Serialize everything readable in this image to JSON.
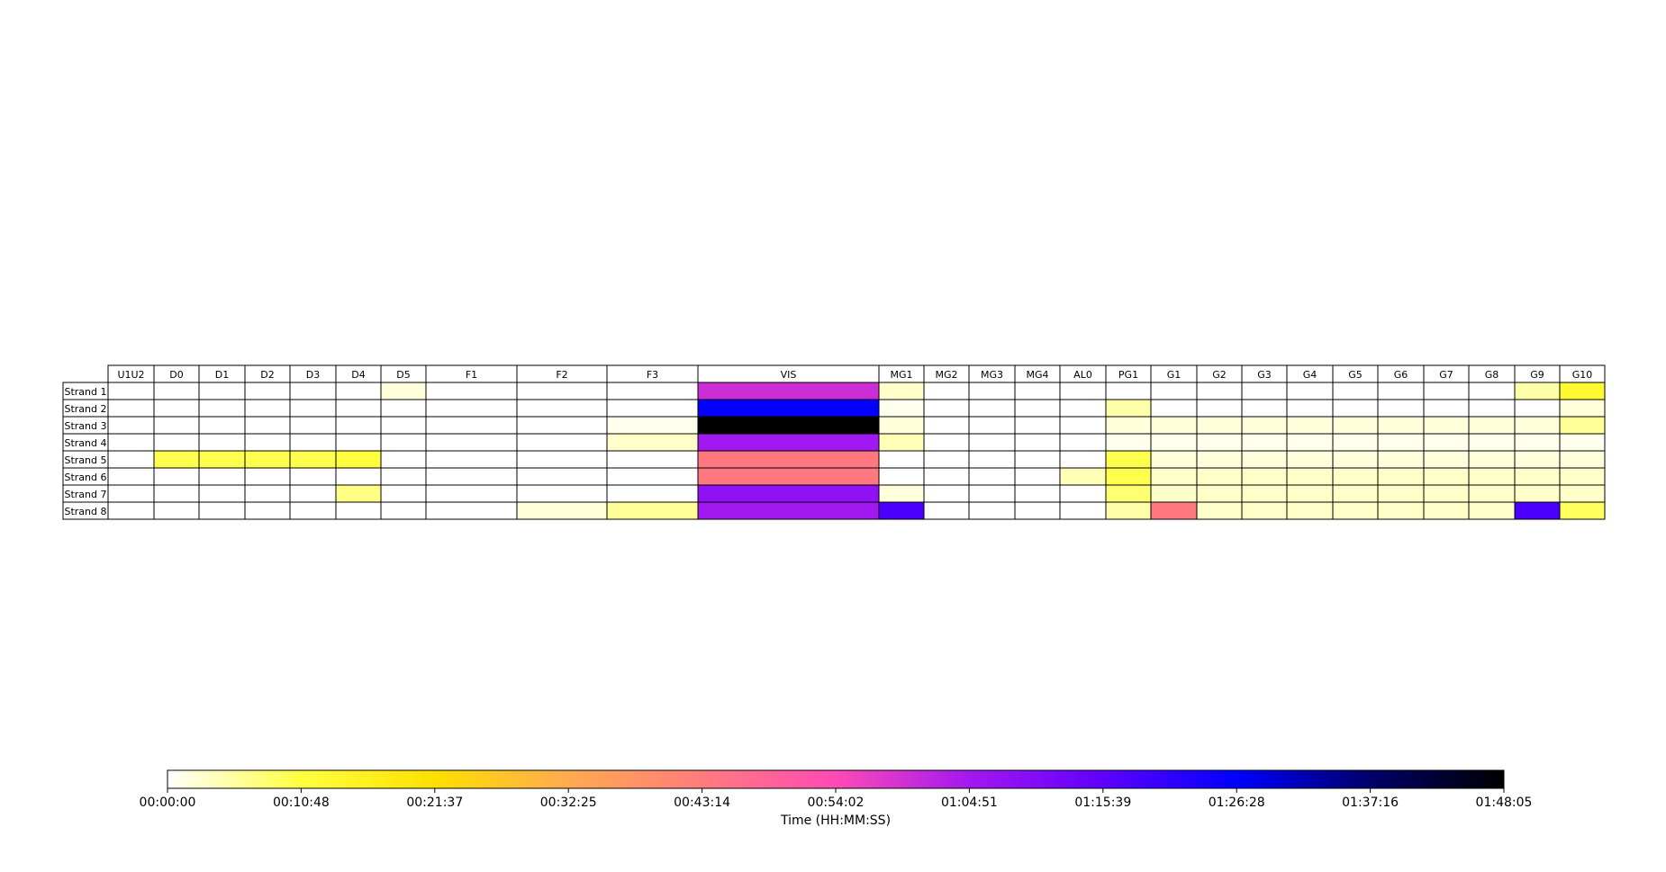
{
  "chart_data": {
    "type": "heatmap",
    "title": "",
    "columns": [
      "U1U2",
      "D0",
      "D1",
      "D2",
      "D3",
      "D4",
      "D5",
      "F1",
      "F2",
      "F3",
      "VIS",
      "MG1",
      "MG2",
      "MG3",
      "MG4",
      "AL0",
      "PG1",
      "G1",
      "G2",
      "G3",
      "G4",
      "G5",
      "G6",
      "G7",
      "G8",
      "G9",
      "G10"
    ],
    "rows": [
      "Strand 1",
      "Strand 2",
      "Strand 3",
      "Strand 4",
      "Strand 5",
      "Strand 6",
      "Strand 7",
      "Strand 8"
    ],
    "values": [
      [
        0,
        0,
        0,
        0,
        0,
        0,
        2,
        0,
        0,
        0,
        60,
        3,
        0,
        0,
        0,
        0,
        0,
        0,
        0,
        0,
        0,
        0,
        0,
        0,
        0,
        5,
        13
      ],
      [
        0,
        0,
        0,
        0,
        0,
        0,
        0,
        0,
        0,
        0,
        86,
        1,
        0,
        0,
        0,
        0,
        5,
        0,
        0,
        0,
        0,
        0,
        0,
        0,
        0,
        0,
        2
      ],
      [
        0,
        0,
        0,
        0,
        0,
        0,
        0,
        0,
        0,
        1,
        108,
        2,
        0,
        0,
        0,
        0,
        2,
        2,
        2,
        2,
        2,
        2,
        2,
        2,
        2,
        2,
        6
      ],
      [
        0,
        0,
        0,
        0,
        0,
        0,
        0,
        0,
        0,
        3,
        65,
        4,
        0,
        0,
        0,
        0,
        1,
        1,
        1,
        1,
        1,
        1,
        1,
        1,
        1,
        1,
        1
      ],
      [
        0,
        10,
        10,
        10,
        10,
        11,
        0,
        0,
        0,
        0,
        44,
        0,
        0,
        0,
        0,
        0,
        10,
        2,
        2,
        2,
        2,
        2,
        2,
        2,
        2,
        2,
        2
      ],
      [
        0,
        0,
        0,
        0,
        0,
        0,
        0,
        0,
        0,
        0,
        44,
        0,
        0,
        0,
        0,
        4,
        10,
        3,
        3,
        3,
        3,
        3,
        3,
        3,
        3,
        3,
        3
      ],
      [
        0,
        0,
        0,
        0,
        0,
        7,
        0,
        0,
        0,
        0,
        68,
        2,
        0,
        0,
        0,
        0,
        8,
        3,
        3,
        3,
        3,
        3,
        3,
        3,
        3,
        3,
        3
      ],
      [
        0,
        0,
        0,
        0,
        0,
        0,
        0,
        0,
        2,
        6,
        65,
        78,
        0,
        0,
        0,
        0,
        5,
        44,
        3,
        3,
        3,
        3,
        3,
        3,
        3,
        78,
        9
      ]
    ],
    "colorbar": {
      "colormap": "gnuplot2_r",
      "min_seconds": 0,
      "max_seconds": 6485,
      "label": "Time (HH:MM:SS)",
      "ticks": [
        "00:00:00",
        "00:10:48",
        "00:21:37",
        "00:32:25",
        "00:43:14",
        "00:54:02",
        "01:04:51",
        "01:15:39",
        "01:26:28",
        "01:37:16",
        "01:48:05"
      ]
    },
    "value_unit": "minutes"
  }
}
